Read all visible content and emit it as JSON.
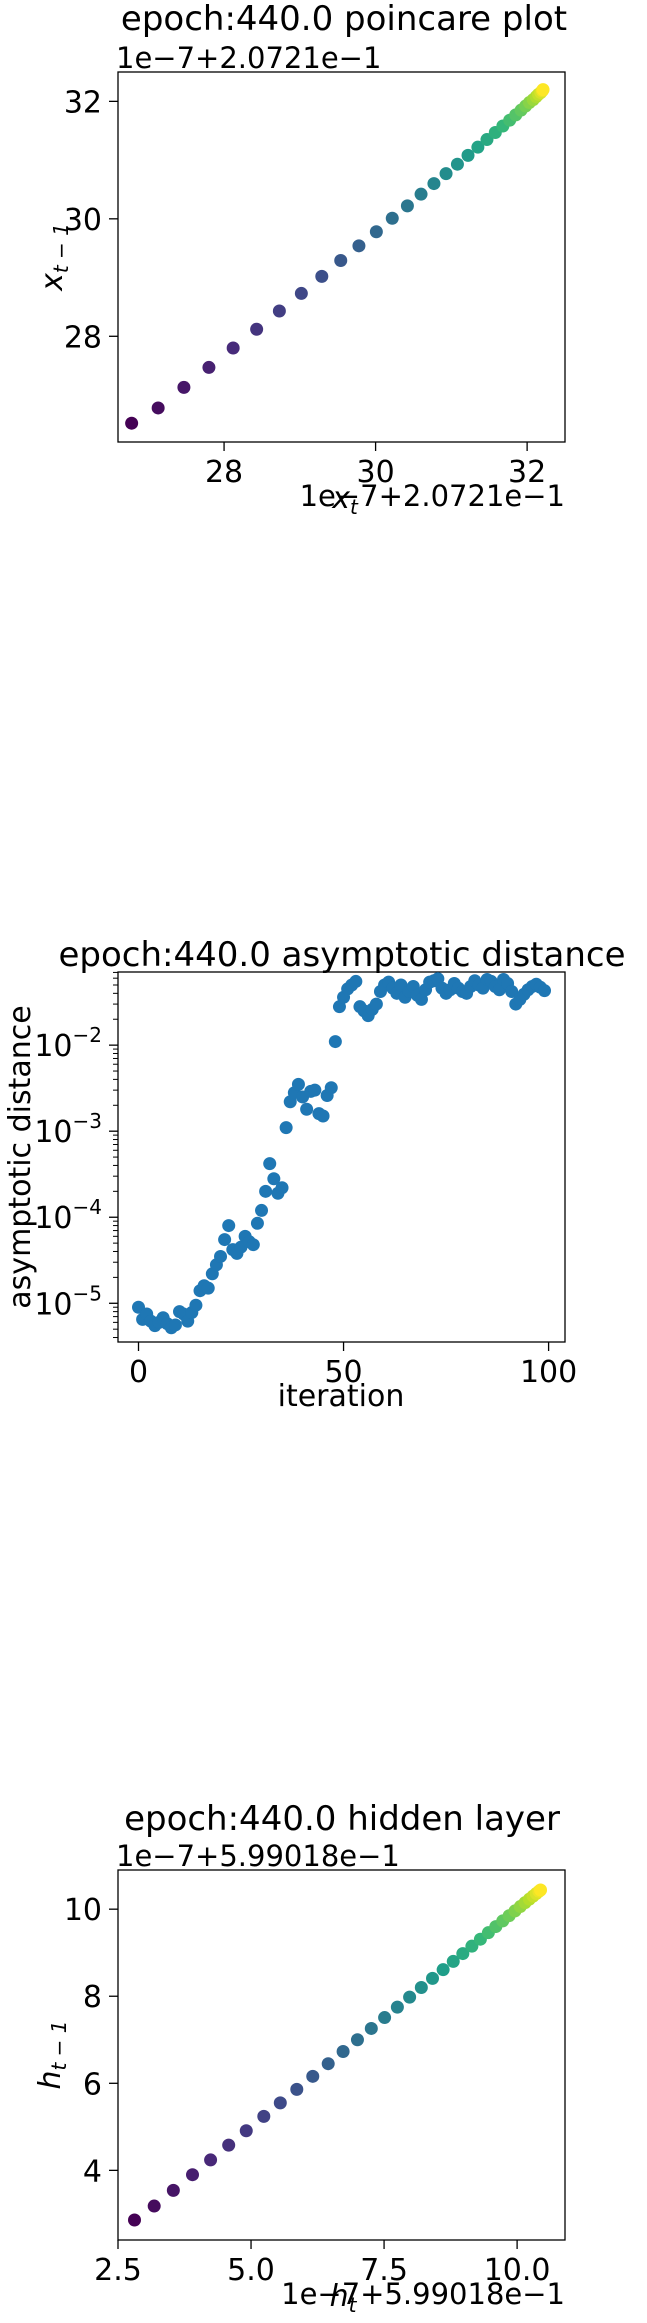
{
  "chart_data": [
    {
      "type": "scatter",
      "title": "epoch:440.0 poincare plot",
      "xlabel": "x_t",
      "ylabel": "x_{t-1}",
      "x_offset_text": "1e−7+2.0721e−1",
      "y_offset_text": "1e−7+2.0721e−1",
      "xlim": [
        26.6,
        32.5
      ],
      "ylim": [
        26.2,
        32.5
      ],
      "xticks": [
        28,
        30,
        32
      ],
      "yticks": [
        28,
        30,
        32
      ],
      "colormap": "viridis",
      "grid": false,
      "points": {
        "x": [
          26.78,
          27.13,
          27.47,
          27.8,
          28.12,
          28.43,
          28.73,
          29.02,
          29.29,
          29.54,
          29.78,
          30.01,
          30.22,
          30.42,
          30.6,
          30.77,
          30.93,
          31.08,
          31.22,
          31.35,
          31.47,
          31.58,
          31.68,
          31.77,
          31.85,
          31.92,
          31.98,
          32.03,
          32.08,
          32.12,
          32.15,
          32.18,
          32.2,
          32.21
        ],
        "y": [
          26.52,
          26.78,
          27.13,
          27.47,
          27.8,
          28.12,
          28.43,
          28.73,
          29.02,
          29.29,
          29.54,
          29.78,
          30.01,
          30.22,
          30.42,
          30.6,
          30.77,
          30.93,
          31.08,
          31.22,
          31.35,
          31.47,
          31.58,
          31.68,
          31.77,
          31.85,
          31.92,
          31.98,
          32.03,
          32.08,
          32.12,
          32.15,
          32.18,
          32.2
        ]
      }
    },
    {
      "type": "scatter",
      "title": "epoch:440.0 asymptotic distance",
      "xlabel": "iteration",
      "ylabel": "asymptotic distance",
      "yscale": "log",
      "xlim": [
        -5,
        104
      ],
      "ylim_log10": [
        -5.45,
        -1.15
      ],
      "xticks": [
        0,
        50,
        100
      ],
      "yticks": [
        {
          "value": -5,
          "base": "10",
          "exp": "−5"
        },
        {
          "value": -4,
          "base": "10",
          "exp": "−4"
        },
        {
          "value": -3,
          "base": "10",
          "exp": "−3"
        },
        {
          "value": -2,
          "base": "10",
          "exp": "−2"
        }
      ],
      "color": "#1f77b4",
      "grid": false,
      "points": {
        "x": [
          0,
          1,
          2,
          3,
          4,
          5,
          6,
          7,
          8,
          9,
          10,
          11,
          12,
          13,
          14,
          15,
          16,
          17,
          18,
          19,
          20,
          21,
          22,
          23,
          24,
          25,
          26,
          27,
          28,
          29,
          30,
          31,
          32,
          33,
          34,
          35,
          36,
          37,
          38,
          39,
          40,
          41,
          42,
          43,
          44,
          45,
          46,
          47,
          48,
          49,
          50,
          51,
          52,
          53,
          54,
          55,
          56,
          57,
          58,
          59,
          60,
          61,
          62,
          63,
          64,
          65,
          66,
          67,
          68,
          69,
          70,
          71,
          72,
          73,
          74,
          75,
          76,
          77,
          78,
          79,
          80,
          81,
          82,
          83,
          84,
          85,
          86,
          87,
          88,
          89,
          90,
          91,
          92,
          93,
          94,
          95,
          96,
          97,
          98,
          99
        ],
        "y": [
          9e-06,
          6.5e-06,
          7.5e-06,
          6.2e-06,
          5.5e-06,
          6e-06,
          6.8e-06,
          5.8e-06,
          5.2e-06,
          5.6e-06,
          8e-06,
          7.5e-06,
          6.2e-06,
          7.8e-06,
          9.5e-06,
          1.4e-05,
          1.6e-05,
          1.5e-05,
          2.2e-05,
          2.8e-05,
          3.5e-05,
          5.5e-05,
          8e-05,
          4.2e-05,
          3.8e-05,
          4.5e-05,
          6e-05,
          5.2e-05,
          4.8e-05,
          8.5e-05,
          0.00012,
          0.0002,
          0.00042,
          0.00028,
          0.00019,
          0.00022,
          0.0011,
          0.0022,
          0.0028,
          0.0035,
          0.0025,
          0.0018,
          0.0029,
          0.003,
          0.0016,
          0.0015,
          0.0026,
          0.0032,
          0.011,
          0.028,
          0.036,
          0.045,
          0.05,
          0.055,
          0.028,
          0.025,
          0.022,
          0.026,
          0.03,
          0.042,
          0.05,
          0.054,
          0.046,
          0.04,
          0.05,
          0.036,
          0.042,
          0.048,
          0.038,
          0.034,
          0.044,
          0.054,
          0.056,
          0.059,
          0.046,
          0.04,
          0.044,
          0.052,
          0.046,
          0.042,
          0.04,
          0.048,
          0.056,
          0.05,
          0.046,
          0.058,
          0.055,
          0.048,
          0.044,
          0.058,
          0.052,
          0.042,
          0.03,
          0.034,
          0.039,
          0.044,
          0.048,
          0.051,
          0.047,
          0.043
        ]
      }
    },
    {
      "type": "scatter",
      "title": "epoch:440.0 hidden layer",
      "xlabel": "h_t",
      "ylabel": "h_{t-1}",
      "x_offset_text": "1e−7+5.99018e−1",
      "y_offset_text": "1e−7+5.99018e−1",
      "xlim": [
        2.5,
        10.9
      ],
      "ylim": [
        2.4,
        10.9
      ],
      "xticks": [
        "2.5",
        "5.0",
        "7.5",
        "10.0"
      ],
      "xtick_values": [
        2.5,
        5.0,
        7.5,
        10.0
      ],
      "yticks": [
        4,
        6,
        8,
        10
      ],
      "colormap": "viridis",
      "grid": false,
      "points": {
        "x": [
          2.81,
          3.18,
          3.54,
          3.9,
          4.24,
          4.58,
          4.91,
          5.24,
          5.55,
          5.86,
          6.16,
          6.45,
          6.73,
          7.0,
          7.26,
          7.51,
          7.75,
          7.98,
          8.2,
          8.41,
          8.61,
          8.8,
          8.98,
          9.15,
          9.31,
          9.46,
          9.6,
          9.73,
          9.85,
          9.96,
          10.06,
          10.15,
          10.23,
          10.3,
          10.36,
          10.41,
          10.44
        ],
        "y": [
          2.86,
          3.18,
          3.54,
          3.9,
          4.24,
          4.58,
          4.91,
          5.24,
          5.55,
          5.86,
          6.16,
          6.45,
          6.73,
          7.0,
          7.26,
          7.51,
          7.75,
          7.98,
          8.2,
          8.41,
          8.61,
          8.8,
          8.98,
          9.15,
          9.31,
          9.46,
          9.6,
          9.73,
          9.85,
          9.96,
          10.06,
          10.15,
          10.23,
          10.3,
          10.36,
          10.41,
          10.44
        ]
      }
    }
  ]
}
